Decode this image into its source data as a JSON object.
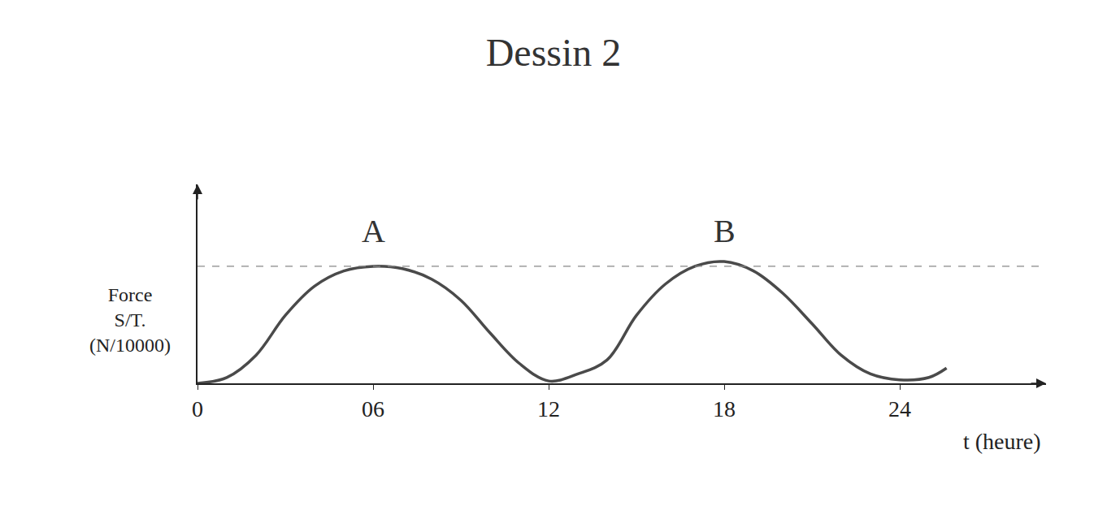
{
  "chart_data": {
    "type": "line",
    "title": "Dessin 2",
    "x_label": "t (heure)",
    "y_label": "Force S/T. (N/10000)",
    "x": [
      0,
      1,
      2,
      3,
      4,
      5,
      6,
      7,
      8,
      9,
      10,
      11,
      12,
      13,
      14,
      15,
      16,
      17,
      18,
      19,
      20,
      21,
      22,
      23,
      24,
      25,
      25.6
    ],
    "values": [
      0,
      0.05,
      0.24,
      0.58,
      0.83,
      0.96,
      1.0,
      0.98,
      0.89,
      0.71,
      0.43,
      0.17,
      0.02,
      0.08,
      0.2,
      0.58,
      0.85,
      1.0,
      1.04,
      0.96,
      0.77,
      0.51,
      0.24,
      0.08,
      0.03,
      0.05,
      0.13
    ],
    "color": "#4a4a4a",
    "line_style": "solid",
    "xlim": [
      0,
      29
    ],
    "ylim": [
      0,
      1.7
    ],
    "xticks": [
      0,
      {
        "value": 6,
        "label": "06"
      },
      12,
      18,
      24
    ],
    "yticks": [],
    "tick_labels": "x",
    "grid": false,
    "reference_line": {
      "y": 1.0,
      "line_style": "dash"
    },
    "annotations": [
      {
        "text": "A",
        "x": 6,
        "y": 1.3
      },
      {
        "text": "B",
        "x": 18,
        "y": 1.3
      }
    ]
  }
}
